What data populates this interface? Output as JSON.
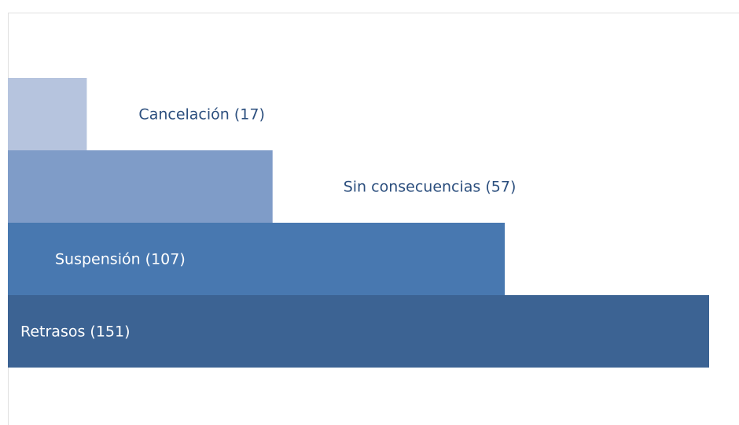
{
  "chart_data": {
    "type": "bar",
    "orientation": "horizontal",
    "values": [
      17,
      57,
      107,
      151
    ],
    "value_labels": [
      "Cancelación (17)",
      "Sin consecuencias (57)",
      "Suspensión (107)",
      "Retrasos (151)"
    ],
    "colors": [
      "#b6c4de",
      "#7f9cc8",
      "#4878b0",
      "#3c6393"
    ],
    "xlim": [
      0,
      151
    ]
  }
}
